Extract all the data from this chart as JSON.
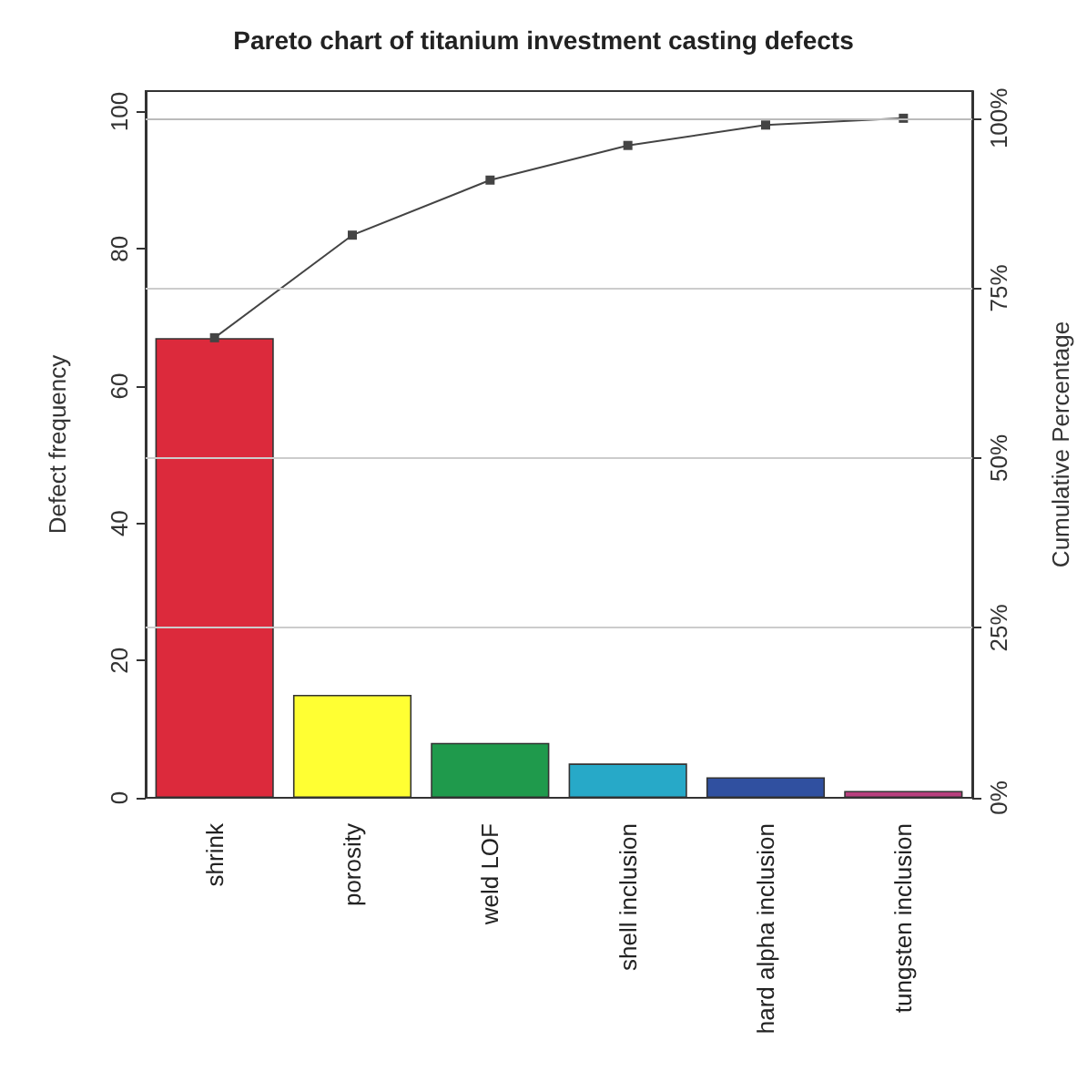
{
  "chart_data": {
    "type": "bar",
    "title": "Pareto chart of titanium investment casting defects",
    "ylabel": "Defect frequency",
    "y2label": "Cumulative Percentage",
    "categories": [
      "shrink",
      "porosity",
      "weld LOF",
      "shell inclusion",
      "hard alpha inclusion",
      "tungsten inclusion"
    ],
    "series": [
      {
        "colors": [
          "#dc2a3c",
          "#ffff33",
          "#1f9a4c",
          "#27a9c8",
          "#3050a0",
          "#b8407e"
        ],
        "values": [
          67,
          15,
          8,
          5,
          3,
          1
        ]
      },
      {
        "type": "line",
        "axis": "y2",
        "color": "#444444",
        "values": [
          67.7,
          82.8,
          90.9,
          96,
          99,
          100
        ]
      }
    ],
    "ylim": [
      0,
      103
    ],
    "yticks": [
      0,
      20,
      40,
      60,
      80,
      100
    ],
    "y2lim": [
      0,
      104
    ],
    "y2ticks": [
      {
        "value": 0,
        "label": "0%"
      },
      {
        "value": 25,
        "label": "25%"
      },
      {
        "value": 50,
        "label": "50%"
      },
      {
        "value": 75,
        "label": "75%"
      },
      {
        "value": 100,
        "label": "100%"
      }
    ],
    "ref_lines": [
      {
        "axis": "y2",
        "value": 25,
        "color": "#cccccc"
      },
      {
        "axis": "y2",
        "value": 50,
        "color": "#cccccc"
      },
      {
        "axis": "y2",
        "value": 75,
        "color": "#cccccc"
      },
      {
        "axis": "y2",
        "value": 100,
        "color": "#bbbbbb"
      }
    ],
    "marker": "square",
    "line_style": "solid",
    "grid": false
  }
}
